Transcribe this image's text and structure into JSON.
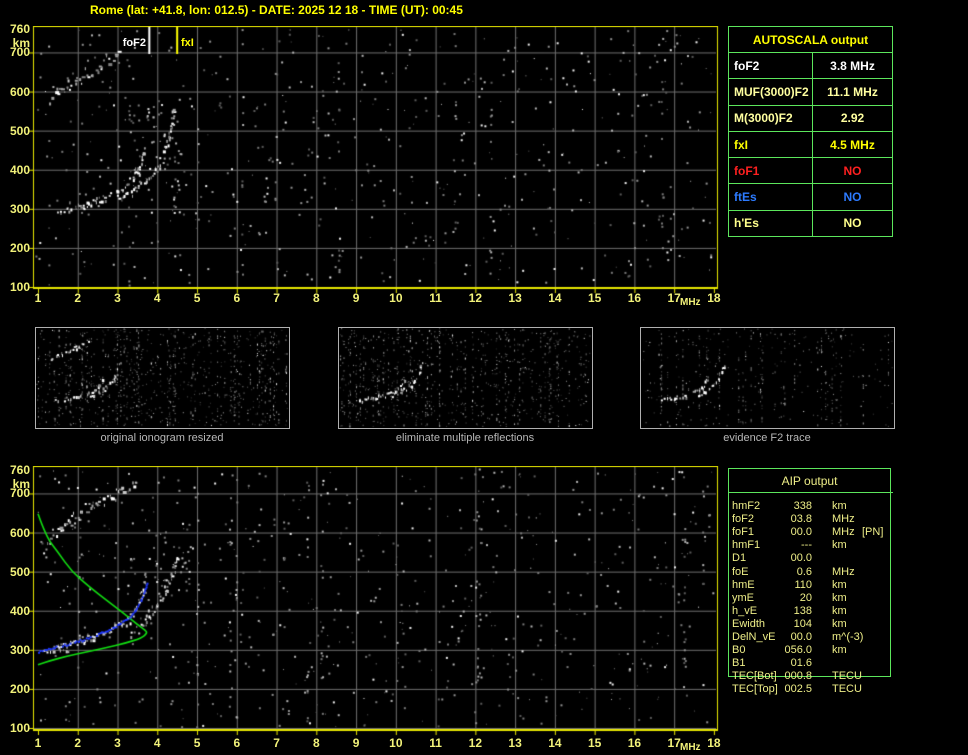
{
  "title": "Rome (lat: +41.8, lon: 012.5) - DATE: 2025 12 18 - TIME (UT): 00:45",
  "colors": {
    "background": "#000000",
    "title": "#ffff00",
    "plot_border": "#e8e800",
    "grid": "#6f6f6f",
    "axis_labels": "#f2f27a",
    "table_border_green": "#5ce65c",
    "aip_text": "#eeee88",
    "caption_gray": "#b8b8b8",
    "thumb_border": "#b0b0b0",
    "profile_green": "#11dd11",
    "fitted_blue": "#1d36ff",
    "marker_fof2": "#ffffff",
    "marker_fxi": "#ffff00",
    "echo_white": "#ffffff"
  },
  "autoscala": {
    "header": "AUTOSCALA output",
    "rows": [
      {
        "label": "foF2",
        "value": "3.8 MHz",
        "color": "#ffffff"
      },
      {
        "label": "MUF(3000)F2",
        "value": "11.1 MHz",
        "color": "#ffffa0"
      },
      {
        "label": "M(3000)F2",
        "value": "2.92",
        "color": "#ffffa0"
      },
      {
        "label": "fxI",
        "value": "4.5 MHz",
        "color": "#ffff00"
      },
      {
        "label": "foF1",
        "value": "NO",
        "color": "#ff2020"
      },
      {
        "label": "ftEs",
        "value": "NO",
        "color": "#2d7bff"
      },
      {
        "label": "h'Es",
        "value": "NO",
        "color": "#ffff8c"
      }
    ]
  },
  "aip": {
    "header": "AIP output",
    "rows": [
      {
        "name": "hmF2",
        "value": "338",
        "unit": "km",
        "extra": ""
      },
      {
        "name": "foF2",
        "value": "03.8",
        "unit": "MHz",
        "extra": ""
      },
      {
        "name": "foF1",
        "value": "00.0",
        "unit": "MHz",
        "extra": "[PN]"
      },
      {
        "name": "hmF1",
        "value": "---",
        "unit": "km",
        "extra": ""
      },
      {
        "name": "D1",
        "value": "00.0",
        "unit": "",
        "extra": ""
      },
      {
        "name": "foE",
        "value": "0.6",
        "unit": "MHz",
        "extra": ""
      },
      {
        "name": "hmE",
        "value": "110",
        "unit": "km",
        "extra": ""
      },
      {
        "name": "ymE",
        "value": "20",
        "unit": "km",
        "extra": ""
      },
      {
        "name": "h_vE",
        "value": "138",
        "unit": "km",
        "extra": ""
      },
      {
        "name": "Ewidth",
        "value": "104",
        "unit": "km",
        "extra": ""
      },
      {
        "name": "DelN_vE",
        "value": "00.0",
        "unit": "m^(-3)",
        "extra": ""
      },
      {
        "name": "B0",
        "value": "056.0",
        "unit": "km",
        "extra": ""
      },
      {
        "name": "B1",
        "value": "01.6",
        "unit": "",
        "extra": ""
      },
      {
        "name": "TEC[Bot]",
        "value": "000.8",
        "unit": "TECU",
        "extra": ""
      },
      {
        "name": "TEC[Top]",
        "value": "002.5",
        "unit": "TECU",
        "extra": ""
      }
    ]
  },
  "thumbnails": [
    {
      "caption": "original ionogram resized",
      "noise_dots": 1050,
      "traces": [
        "reflection",
        "ordinary",
        "extraordinary"
      ]
    },
    {
      "caption": "eliminate multiple reflections",
      "noise_dots": 1000,
      "traces": [
        "ordinary",
        "extraordinary"
      ]
    },
    {
      "caption": "evidence F2 trace",
      "noise_dots": 500,
      "traces": [
        "ordinary",
        "extraordinary"
      ]
    }
  ],
  "chart_data": [
    {
      "id": "top_ionogram",
      "type": "scatter",
      "title": "",
      "xlabel": "MHz",
      "ylabel": "km",
      "xlim": [
        1,
        18
      ],
      "ylim": [
        100,
        760
      ],
      "xticks": [
        1,
        2,
        3,
        4,
        5,
        6,
        7,
        8,
        9,
        10,
        11,
        12,
        13,
        14,
        15,
        16,
        17,
        18
      ],
      "yticks": [
        760,
        700,
        600,
        500,
        400,
        300,
        200,
        100
      ],
      "grid": true,
      "legend": "none",
      "markers": [
        {
          "label": "foF2",
          "freq_mhz": 3.8,
          "color": "#ffffff"
        },
        {
          "label": "fxI",
          "freq_mhz": 4.5,
          "color": "#ffff00"
        }
      ],
      "series": [
        {
          "name": "F2 trace ordinary",
          "points": [
            [
              1.5,
              293
            ],
            [
              1.9,
              303
            ],
            [
              2.3,
              315
            ],
            [
              2.7,
              330
            ],
            [
              3.0,
              347
            ],
            [
              3.25,
              365
            ],
            [
              3.45,
              390
            ],
            [
              3.55,
              415
            ],
            [
              3.62,
              440
            ],
            [
              3.67,
              465
            ]
          ]
        },
        {
          "name": "F2 trace extraordinary",
          "points": [
            [
              3.05,
              330
            ],
            [
              3.4,
              350
            ],
            [
              3.7,
              375
            ],
            [
              3.95,
              405
            ],
            [
              4.15,
              440
            ],
            [
              4.28,
              480
            ],
            [
              4.35,
              520
            ],
            [
              4.4,
              555
            ]
          ]
        },
        {
          "name": "multiple reflection",
          "points": [
            [
              1.3,
              585
            ],
            [
              1.75,
              615
            ],
            [
              2.2,
              645
            ],
            [
              2.65,
              672
            ],
            [
              3.05,
              700
            ]
          ]
        }
      ],
      "spread_clusters": [
        [
          3.8,
          520,
          14,
          0.35,
          50
        ],
        [
          4.25,
          470,
          12,
          0.3,
          60
        ],
        [
          4.5,
          350,
          16,
          0.18,
          170
        ]
      ],
      "noise_dots": 560,
      "noise_columns": 12
    },
    {
      "id": "bottom_ionogram",
      "type": "scatter",
      "title": "",
      "xlabel": "MHz",
      "ylabel": "km",
      "xlim": [
        1,
        18
      ],
      "ylim": [
        100,
        760
      ],
      "xticks": [
        1,
        2,
        3,
        4,
        5,
        6,
        7,
        8,
        9,
        10,
        11,
        12,
        13,
        14,
        15,
        16,
        17,
        18
      ],
      "yticks": [
        760,
        700,
        600,
        500,
        400,
        300,
        200,
        100
      ],
      "grid": true,
      "legend": "none",
      "markers": [],
      "series": [
        {
          "name": "F2 trace ordinary",
          "points": [
            [
              1.1,
              295
            ],
            [
              1.5,
              307
            ],
            [
              2.0,
              322
            ],
            [
              2.45,
              338
            ],
            [
              2.85,
              355
            ],
            [
              3.15,
              375
            ],
            [
              3.4,
              398
            ],
            [
              3.55,
              425
            ],
            [
              3.63,
              450
            ],
            [
              3.68,
              472
            ]
          ]
        },
        {
          "name": "F2 trace extraordinary",
          "points": [
            [
              3.3,
              348
            ],
            [
              3.6,
              368
            ],
            [
              3.85,
              392
            ],
            [
              4.05,
              420
            ],
            [
              4.2,
              450
            ],
            [
              4.35,
              490
            ],
            [
              4.45,
              525
            ],
            [
              4.5,
              545
            ]
          ]
        },
        {
          "name": "multiple reflection",
          "points": [
            [
              1.25,
              585
            ],
            [
              1.7,
              622
            ],
            [
              2.15,
              655
            ],
            [
              2.6,
              685
            ],
            [
              3.0,
              708
            ],
            [
              3.45,
              725
            ]
          ]
        }
      ],
      "profile_curve": {
        "name": "electron density profile N(h)",
        "color": "#11dd11",
        "points": [
          [
            1.0,
            648
          ],
          [
            1.2,
            590
          ],
          [
            1.5,
            550
          ],
          [
            1.85,
            500
          ],
          [
            2.3,
            460
          ],
          [
            2.75,
            425
          ],
          [
            3.2,
            390
          ],
          [
            3.5,
            365
          ],
          [
            3.7,
            350
          ],
          [
            3.75,
            343
          ],
          [
            3.6,
            330
          ],
          [
            3.2,
            317
          ],
          [
            2.7,
            305
          ],
          [
            2.2,
            294
          ],
          [
            1.7,
            283
          ],
          [
            1.3,
            272
          ],
          [
            1.0,
            262
          ]
        ]
      },
      "fitted_curve": {
        "name": "fitted F2 trace",
        "color": "#1d36ff",
        "points": [
          [
            1.0,
            297
          ],
          [
            1.35,
            306
          ],
          [
            1.75,
            316
          ],
          [
            2.15,
            328
          ],
          [
            2.55,
            343
          ],
          [
            2.9,
            359
          ],
          [
            3.2,
            378
          ],
          [
            3.42,
            398
          ],
          [
            3.55,
            422
          ],
          [
            3.65,
            447
          ],
          [
            3.71,
            468
          ],
          [
            3.74,
            476
          ]
        ]
      },
      "spread_clusters": [
        [
          4.6,
          520,
          16,
          0.3,
          50
        ],
        [
          4.1,
          480,
          10,
          0.25,
          40
        ],
        [
          3.5,
          510,
          8,
          0.2,
          30
        ]
      ],
      "noise_dots": 620,
      "noise_columns": 12
    }
  ]
}
